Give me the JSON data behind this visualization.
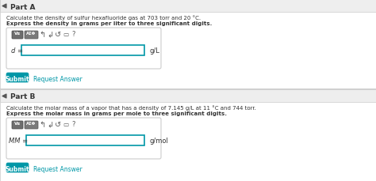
{
  "bg_color": "#f0f0f0",
  "white": "#ffffff",
  "teal": "#0097a7",
  "header_bg": "#eeeeee",
  "border_gray": "#cccccc",
  "text_dark": "#333333",
  "text_med": "#555555",
  "icon_dark": "#5a5a5a",
  "icon_bg1": "#6e6e6e",
  "icon_bg2": "#7a7a7a",
  "part_a_label": "Part A",
  "part_b_label": "Part B",
  "part_a_desc": "Calculate the density of sulfur hexafluoride gas at 703 torr and 20 °C.",
  "part_a_bold": "Express the density in grams per liter to three significant digits.",
  "part_a_var": "d =",
  "part_a_unit": "g/L",
  "part_b_desc": "Calculate the molar mass of a vapor that has a density of 7.145 g/L at 11 °C and 744 torr.",
  "part_b_bold": "Express the molar mass in grams per mole to three significant digits.",
  "part_b_var": "MM =",
  "part_b_unit": "g/mol",
  "submit_label": "Submit",
  "request_label": "Request Answer",
  "arrow_sym": "▾",
  "fig_w": 4.74,
  "fig_h": 2.3,
  "dpi": 100
}
